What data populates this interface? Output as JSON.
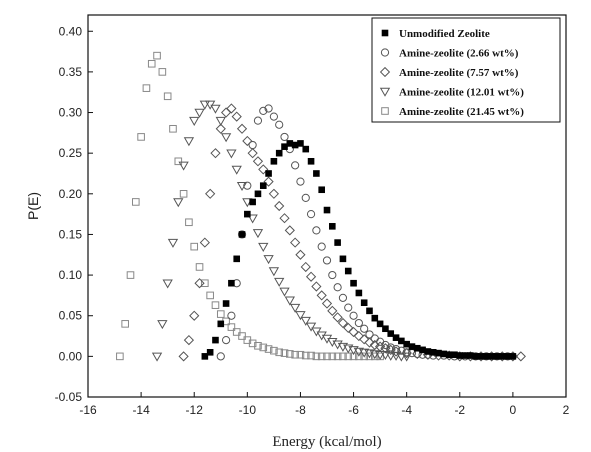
{
  "chart_data": {
    "type": "scatter",
    "title": "",
    "xlabel": "Energy (kcal/mol)",
    "ylabel": "P(E)",
    "xlim": [
      -16,
      2
    ],
    "ylim": [
      -0.05,
      0.42
    ],
    "xticks": [
      -16,
      -14,
      -12,
      -10,
      -8,
      -6,
      -4,
      -2,
      0,
      2
    ],
    "xtick_labels": [
      "-16",
      "-14",
      "-12",
      "-10",
      "-8",
      "-6",
      "-4",
      "-2",
      "0",
      "2"
    ],
    "yticks": [
      -0.05,
      0.0,
      0.05,
      0.1,
      0.15,
      0.2,
      0.25,
      0.3,
      0.35,
      0.4
    ],
    "ytick_labels": [
      "-0.05",
      "0.00",
      "0.05",
      "0.10",
      "0.15",
      "0.20",
      "0.25",
      "0.30",
      "0.35",
      "0.40"
    ],
    "grid": false,
    "legend_position": "top-right",
    "series": [
      {
        "name": "Unmodified Zeolite",
        "marker": "filled-square",
        "color": "#000000",
        "x": [
          -11.6,
          -11.4,
          -11.2,
          -11.0,
          -10.8,
          -10.6,
          -10.4,
          -10.2,
          -10.0,
          -9.8,
          -9.6,
          -9.4,
          -9.2,
          -9.0,
          -8.8,
          -8.6,
          -8.4,
          -8.2,
          -8.0,
          -7.8,
          -7.6,
          -7.4,
          -7.2,
          -7.0,
          -6.8,
          -6.6,
          -6.4,
          -6.2,
          -6.0,
          -5.8,
          -5.6,
          -5.4,
          -5.2,
          -5.0,
          -4.8,
          -4.6,
          -4.4,
          -4.2,
          -4.0,
          -3.8,
          -3.6,
          -3.4,
          -3.2,
          -3.0,
          -2.8,
          -2.6,
          -2.4,
          -2.2,
          -2.0,
          -1.8,
          -1.6,
          -1.4,
          -1.2,
          -1.0,
          -0.8,
          -0.6,
          -0.4,
          -0.2,
          0.0
        ],
        "y": [
          0.0,
          0.005,
          0.02,
          0.04,
          0.065,
          0.09,
          0.12,
          0.15,
          0.175,
          0.19,
          0.2,
          0.21,
          0.225,
          0.24,
          0.25,
          0.258,
          0.262,
          0.26,
          0.262,
          0.255,
          0.24,
          0.225,
          0.205,
          0.18,
          0.16,
          0.14,
          0.12,
          0.105,
          0.09,
          0.078,
          0.066,
          0.056,
          0.047,
          0.04,
          0.034,
          0.028,
          0.023,
          0.019,
          0.015,
          0.012,
          0.01,
          0.008,
          0.006,
          0.005,
          0.004,
          0.003,
          0.002,
          0.002,
          0.001,
          0.001,
          0.001,
          0.0,
          0.0,
          0.0,
          0.0,
          0.0,
          0.0,
          0.0,
          0.0
        ]
      },
      {
        "name": "Amine-zeolite (2.66 wt%)",
        "marker": "open-circle",
        "color": "#555555",
        "x": [
          -11.0,
          -10.8,
          -10.6,
          -10.4,
          -10.2,
          -10.0,
          -9.8,
          -9.6,
          -9.4,
          -9.2,
          -9.0,
          -8.8,
          -8.6,
          -8.4,
          -8.2,
          -8.0,
          -7.8,
          -7.6,
          -7.4,
          -7.2,
          -7.0,
          -6.8,
          -6.6,
          -6.4,
          -6.2,
          -6.0,
          -5.8,
          -5.6,
          -5.4,
          -5.2,
          -5.0,
          -4.8,
          -4.6,
          -4.4,
          -4.2,
          -4.0,
          -3.8,
          -3.6,
          -3.4,
          -3.2,
          -3.0,
          -2.6,
          -2.2,
          -1.8,
          -1.4,
          -1.0,
          -0.6,
          -0.2
        ],
        "y": [
          0.0,
          0.02,
          0.05,
          0.09,
          0.15,
          0.21,
          0.26,
          0.29,
          0.302,
          0.305,
          0.295,
          0.285,
          0.27,
          0.255,
          0.235,
          0.215,
          0.195,
          0.175,
          0.155,
          0.135,
          0.118,
          0.1,
          0.085,
          0.072,
          0.06,
          0.05,
          0.041,
          0.034,
          0.027,
          0.022,
          0.018,
          0.014,
          0.011,
          0.009,
          0.007,
          0.005,
          0.004,
          0.003,
          0.002,
          0.002,
          0.001,
          0.001,
          0.0,
          0.0,
          0.0,
          0.0,
          0.0,
          0.0
        ]
      },
      {
        "name": "Amine-zeolite (7.57 wt%)",
        "marker": "open-diamond",
        "color": "#555555",
        "x": [
          -12.4,
          -12.2,
          -12.0,
          -11.8,
          -11.6,
          -11.4,
          -11.2,
          -11.0,
          -10.8,
          -10.6,
          -10.4,
          -10.2,
          -10.0,
          -9.8,
          -9.6,
          -9.4,
          -9.2,
          -9.0,
          -8.8,
          -8.6,
          -8.4,
          -8.2,
          -8.0,
          -7.8,
          -7.6,
          -7.4,
          -7.2,
          -7.0,
          -6.8,
          -6.6,
          -6.4,
          -6.2,
          -6.0,
          -5.8,
          -5.6,
          -5.4,
          -5.2,
          -5.0,
          -4.8,
          -4.6,
          -4.4,
          -4.0,
          -3.6,
          -3.2,
          -2.8,
          -2.4,
          -2.0,
          -1.6,
          -1.2,
          -0.8,
          -0.4,
          0.0,
          0.3
        ],
        "y": [
          0.0,
          0.02,
          0.05,
          0.09,
          0.14,
          0.2,
          0.25,
          0.28,
          0.3,
          0.305,
          0.295,
          0.28,
          0.265,
          0.25,
          0.24,
          0.23,
          0.215,
          0.2,
          0.185,
          0.17,
          0.155,
          0.14,
          0.125,
          0.11,
          0.098,
          0.086,
          0.075,
          0.065,
          0.056,
          0.048,
          0.041,
          0.035,
          0.03,
          0.025,
          0.021,
          0.017,
          0.014,
          0.012,
          0.01,
          0.008,
          0.006,
          0.004,
          0.003,
          0.002,
          0.001,
          0.001,
          0.0,
          0.0,
          0.0,
          0.0,
          0.0,
          0.0,
          0.0
        ]
      },
      {
        "name": "Amine-zeolite (12.01 wt%)",
        "marker": "open-triangle-down",
        "color": "#555555",
        "x": [
          -13.4,
          -13.2,
          -13.0,
          -12.8,
          -12.6,
          -12.4,
          -12.2,
          -12.0,
          -11.8,
          -11.6,
          -11.4,
          -11.2,
          -11.0,
          -10.8,
          -10.6,
          -10.4,
          -10.2,
          -10.0,
          -9.8,
          -9.6,
          -9.4,
          -9.2,
          -9.0,
          -8.8,
          -8.6,
          -8.4,
          -8.2,
          -8.0,
          -7.8,
          -7.6,
          -7.4,
          -7.2,
          -7.0,
          -6.8,
          -6.6,
          -6.4,
          -6.2,
          -6.0,
          -5.8,
          -5.6,
          -5.4,
          -5.2,
          -5.0,
          -4.8,
          -4.6,
          -4.4,
          -4.2,
          -4.0
        ],
        "y": [
          0.0,
          0.04,
          0.09,
          0.14,
          0.19,
          0.235,
          0.265,
          0.29,
          0.3,
          0.31,
          0.31,
          0.305,
          0.29,
          0.27,
          0.25,
          0.23,
          0.21,
          0.19,
          0.17,
          0.152,
          0.135,
          0.12,
          0.105,
          0.092,
          0.08,
          0.069,
          0.06,
          0.051,
          0.044,
          0.037,
          0.031,
          0.026,
          0.022,
          0.018,
          0.015,
          0.012,
          0.01,
          0.008,
          0.006,
          0.005,
          0.004,
          0.003,
          0.002,
          0.002,
          0.001,
          0.001,
          0.0,
          0.0
        ]
      },
      {
        "name": "Amine-zeolite (21.45 wt%)",
        "marker": "open-square",
        "color": "#888888",
        "x": [
          -14.8,
          -14.6,
          -14.4,
          -14.2,
          -14.0,
          -13.8,
          -13.6,
          -13.4,
          -13.2,
          -13.0,
          -12.8,
          -12.6,
          -12.4,
          -12.2,
          -12.0,
          -11.8,
          -11.6,
          -11.4,
          -11.2,
          -11.0,
          -10.8,
          -10.6,
          -10.4,
          -10.2,
          -10.0,
          -9.8,
          -9.6,
          -9.4,
          -9.2,
          -9.0,
          -8.8,
          -8.6,
          -8.4,
          -8.2,
          -8.0,
          -7.8,
          -7.6,
          -7.4,
          -7.2,
          -7.0,
          -6.8,
          -6.6,
          -6.4,
          -6.2,
          -6.0,
          -5.8,
          -5.6,
          -5.4,
          -5.2,
          -5.0
        ],
        "y": [
          0.0,
          0.04,
          0.1,
          0.19,
          0.27,
          0.33,
          0.36,
          0.37,
          0.35,
          0.32,
          0.28,
          0.24,
          0.2,
          0.165,
          0.135,
          0.11,
          0.09,
          0.075,
          0.063,
          0.052,
          0.043,
          0.036,
          0.03,
          0.025,
          0.02,
          0.016,
          0.013,
          0.011,
          0.009,
          0.007,
          0.005,
          0.004,
          0.003,
          0.002,
          0.002,
          0.001,
          0.001,
          0.0,
          0.0,
          0.0,
          0.0,
          0.0,
          0.0,
          0.0,
          0.0,
          0.0,
          0.0,
          0.0,
          0.0,
          0.0
        ]
      }
    ]
  }
}
